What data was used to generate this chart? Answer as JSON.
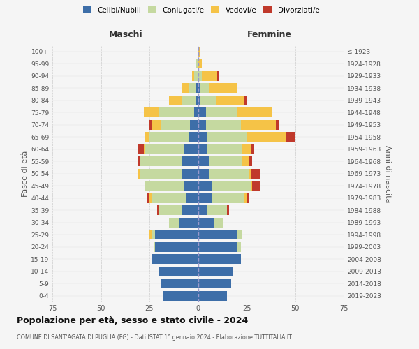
{
  "age_groups": [
    "0-4",
    "5-9",
    "10-14",
    "15-19",
    "20-24",
    "25-29",
    "30-34",
    "35-39",
    "40-44",
    "45-49",
    "50-54",
    "55-59",
    "60-64",
    "65-69",
    "70-74",
    "75-79",
    "80-84",
    "85-89",
    "90-94",
    "95-99",
    "100+"
  ],
  "birth_years": [
    "2019-2023",
    "2014-2018",
    "2009-2013",
    "2004-2008",
    "1999-2003",
    "1994-1998",
    "1989-1993",
    "1984-1988",
    "1979-1983",
    "1974-1978",
    "1969-1973",
    "1964-1968",
    "1959-1963",
    "1954-1958",
    "1949-1953",
    "1944-1948",
    "1939-1943",
    "1934-1938",
    "1929-1933",
    "1924-1928",
    "≤ 1923"
  ],
  "male_celibi": [
    18,
    19,
    20,
    24,
    22,
    22,
    10,
    8,
    6,
    7,
    8,
    8,
    7,
    5,
    4,
    2,
    1,
    1,
    0,
    0,
    0
  ],
  "male_coniugati": [
    0,
    0,
    0,
    0,
    1,
    2,
    5,
    12,
    18,
    20,
    22,
    22,
    20,
    20,
    15,
    18,
    7,
    4,
    2,
    1,
    0
  ],
  "male_vedovi": [
    0,
    0,
    0,
    0,
    0,
    1,
    0,
    0,
    1,
    0,
    1,
    0,
    1,
    2,
    5,
    8,
    7,
    3,
    1,
    0,
    0
  ],
  "male_divorziati": [
    0,
    0,
    0,
    0,
    0,
    0,
    0,
    1,
    1,
    0,
    0,
    1,
    3,
    0,
    1,
    0,
    0,
    0,
    0,
    0,
    0
  ],
  "female_celibi": [
    15,
    17,
    18,
    22,
    20,
    20,
    8,
    5,
    7,
    7,
    6,
    6,
    5,
    5,
    4,
    4,
    1,
    1,
    0,
    0,
    0
  ],
  "female_coniugati": [
    0,
    0,
    0,
    0,
    2,
    3,
    5,
    10,
    17,
    20,
    20,
    17,
    18,
    20,
    18,
    16,
    8,
    5,
    2,
    0,
    0
  ],
  "female_vedovi": [
    0,
    0,
    0,
    0,
    0,
    0,
    0,
    0,
    1,
    1,
    1,
    3,
    4,
    20,
    18,
    18,
    15,
    14,
    8,
    2,
    1
  ],
  "female_divorziati": [
    0,
    0,
    0,
    0,
    0,
    0,
    0,
    1,
    1,
    4,
    5,
    2,
    2,
    5,
    2,
    0,
    1,
    0,
    1,
    0,
    0
  ],
  "color_celibi": "#3d6ea8",
  "color_coniugati": "#c5d9a0",
  "color_vedovi": "#f5c347",
  "color_divorziati": "#c0392b",
  "title": "Popolazione per età, sesso e stato civile - 2024",
  "subtitle": "COMUNE DI SANT'AGATA DI PUGLIA (FG) - Dati ISTAT 1° gennaio 2024 - Elaborazione TUTTITALIA.IT",
  "xlabel_left": "Maschi",
  "xlabel_right": "Femmine",
  "ylabel_left": "Fasce di età",
  "ylabel_right": "Anni di nascita",
  "xlim": 75,
  "bg_color": "#f5f5f5",
  "plot_bg": "#f5f5f5",
  "grid_color": "#cccccc"
}
